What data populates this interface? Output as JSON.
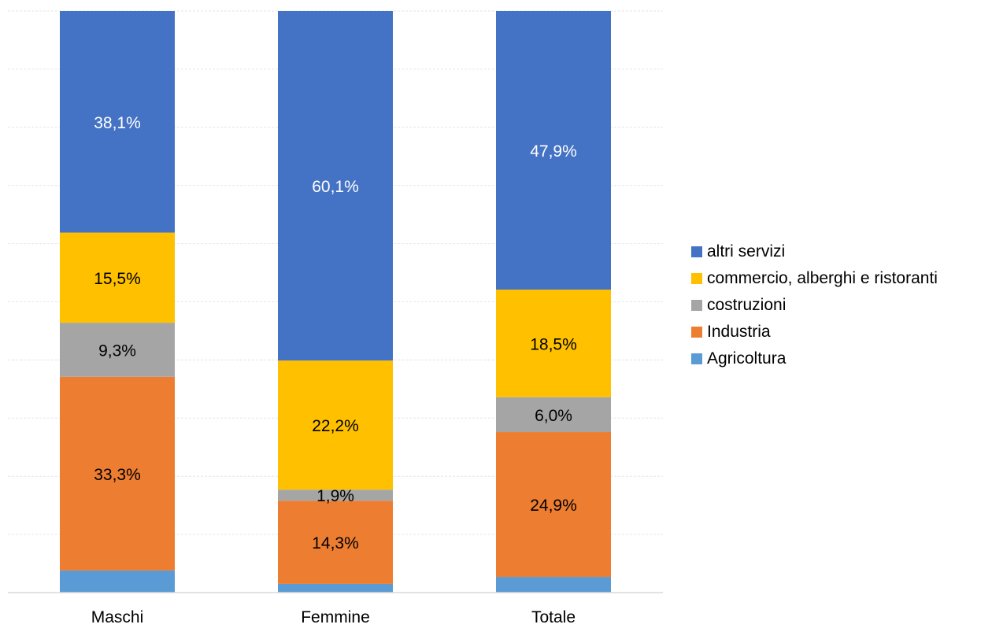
{
  "chart_data": {
    "type": "bar",
    "stacked": true,
    "categories": [
      "Maschi",
      "Femmine",
      "Totale"
    ],
    "ylim": [
      0,
      100
    ],
    "grid": true,
    "legend_position": "right",
    "series": [
      {
        "name": "Agricoltura",
        "color": "#5B9BD5",
        "values": [
          3.8,
          1.5,
          2.7
        ],
        "labels": [
          "",
          "",
          ""
        ],
        "label_color": "#000000"
      },
      {
        "name": "Industria",
        "color": "#ED7D31",
        "values": [
          33.3,
          14.3,
          24.9
        ],
        "labels": [
          "33,3%",
          "14,3%",
          "24,9%"
        ],
        "label_color": "#000000"
      },
      {
        "name": "costruzioni",
        "color": "#A5A5A5",
        "values": [
          9.3,
          1.9,
          6.0
        ],
        "labels": [
          "9,3%",
          "1,9%",
          "6,0%"
        ],
        "label_color": "#000000"
      },
      {
        "name": "commercio, alberghi e ristoranti",
        "color": "#FFC000",
        "values": [
          15.5,
          22.2,
          18.5
        ],
        "labels": [
          "15,5%",
          "22,2%",
          "18,5%"
        ],
        "label_color": "#000000"
      },
      {
        "name": "altri servizi",
        "color": "#4472C4",
        "values": [
          38.1,
          60.1,
          47.9
        ],
        "labels": [
          "38,1%",
          "60,1%",
          "47,9%"
        ],
        "label_color": "#ffffff"
      }
    ]
  }
}
